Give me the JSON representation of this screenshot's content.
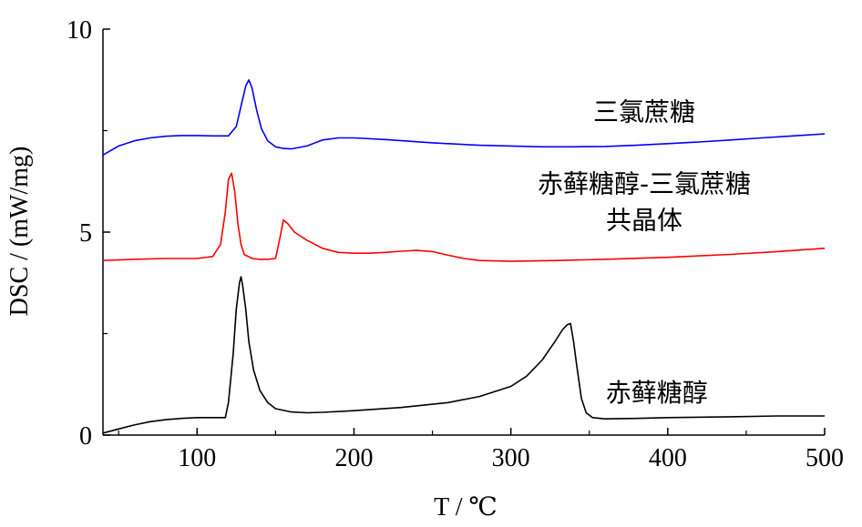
{
  "chart_data": {
    "type": "line",
    "title": "",
    "xlabel": "T / ℃",
    "ylabel": "DSC / (mW/mg)",
    "xlim": [
      40,
      500
    ],
    "ylim": [
      0,
      10
    ],
    "xticks": [
      100,
      200,
      300,
      400,
      500
    ],
    "xtick_labels": [
      "100",
      "200",
      "300",
      "400",
      "500"
    ],
    "yticks": [
      0,
      5,
      10
    ],
    "ytick_labels": [
      "0",
      "5",
      "10"
    ],
    "grid": false,
    "legend": "none",
    "series": [
      {
        "name": "三氯蔗糖",
        "color": "#0000ff",
        "x": [
          40,
          50,
          60,
          70,
          80,
          90,
          100,
          110,
          120,
          125,
          128,
          131,
          133,
          135,
          138,
          141,
          145,
          150,
          155,
          160,
          170,
          180,
          190,
          200,
          220,
          250,
          280,
          300,
          320,
          340,
          360,
          380,
          400,
          420,
          440,
          460,
          480,
          500
        ],
        "y": [
          6.9,
          7.12,
          7.25,
          7.32,
          7.36,
          7.38,
          7.38,
          7.37,
          7.37,
          7.6,
          8.1,
          8.6,
          8.75,
          8.55,
          8.0,
          7.55,
          7.25,
          7.1,
          7.06,
          7.05,
          7.12,
          7.27,
          7.32,
          7.32,
          7.28,
          7.2,
          7.14,
          7.12,
          7.1,
          7.1,
          7.11,
          7.14,
          7.18,
          7.22,
          7.27,
          7.32,
          7.37,
          7.42
        ]
      },
      {
        "name": "赤藓糖醇-三氯蔗糖 共晶体",
        "color": "#ff0000",
        "x": [
          40,
          60,
          80,
          100,
          110,
          115,
          118,
          120,
          122,
          124,
          126,
          128,
          130,
          135,
          140,
          145,
          150,
          153,
          155,
          158,
          162,
          170,
          180,
          190,
          200,
          210,
          220,
          230,
          240,
          250,
          260,
          270,
          280,
          300,
          330,
          360,
          400,
          440,
          470,
          500
        ],
        "y": [
          4.3,
          4.33,
          4.35,
          4.35,
          4.4,
          4.7,
          5.5,
          6.3,
          6.45,
          6.0,
          5.2,
          4.7,
          4.45,
          4.35,
          4.33,
          4.33,
          4.35,
          4.9,
          5.3,
          5.2,
          5.0,
          4.8,
          4.6,
          4.5,
          4.48,
          4.48,
          4.5,
          4.53,
          4.55,
          4.52,
          4.43,
          4.35,
          4.3,
          4.28,
          4.3,
          4.33,
          4.38,
          4.45,
          4.52,
          4.6
        ]
      },
      {
        "name": "赤藓糖醇",
        "color": "#000000",
        "x": [
          40,
          50,
          60,
          70,
          80,
          90,
          100,
          110,
          118,
          120,
          123,
          125,
          127,
          128,
          129,
          131,
          133,
          136,
          140,
          145,
          150,
          160,
          170,
          180,
          200,
          230,
          260,
          280,
          300,
          310,
          320,
          328,
          333,
          336,
          338,
          340,
          342,
          345,
          348,
          352,
          360,
          380,
          400,
          440,
          470,
          500
        ],
        "y": [
          0.05,
          0.15,
          0.25,
          0.33,
          0.38,
          0.41,
          0.43,
          0.43,
          0.43,
          0.8,
          2.0,
          3.1,
          3.75,
          3.9,
          3.7,
          3.1,
          2.3,
          1.6,
          1.1,
          0.8,
          0.65,
          0.57,
          0.55,
          0.56,
          0.6,
          0.68,
          0.8,
          0.95,
          1.2,
          1.45,
          1.85,
          2.3,
          2.6,
          2.72,
          2.75,
          2.3,
          1.7,
          0.9,
          0.55,
          0.43,
          0.4,
          0.41,
          0.43,
          0.45,
          0.47,
          0.47
        ]
      }
    ],
    "annotations": [
      {
        "series_index": 0,
        "lines": [
          "三氯蔗糖"
        ],
        "anchor": [
          385,
          7.75
        ]
      },
      {
        "series_index": 1,
        "lines": [
          "赤藓糖醇-三氯蔗糖",
          "共晶体"
        ],
        "anchor": [
          385,
          5.98
        ]
      },
      {
        "series_index": 2,
        "lines": [
          "赤藓糖醇"
        ],
        "anchor": [
          393,
          0.83
        ]
      }
    ]
  }
}
